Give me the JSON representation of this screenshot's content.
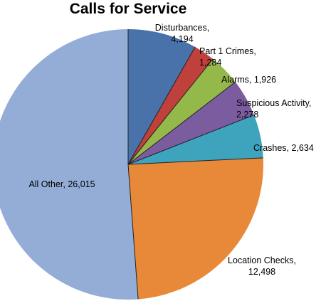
{
  "chart_data": {
    "type": "pie",
    "title": "Calls for Service",
    "slices": [
      {
        "label": "Disturbances",
        "value": 4194,
        "value_text": "4,194",
        "color": "#4A72AA"
      },
      {
        "label": "Part 1 Crimes",
        "value": 1284,
        "value_text": "1,284",
        "color": "#C0403C"
      },
      {
        "label": "Alarms",
        "value": 1926,
        "value_text": "1,926",
        "color": "#95B84B"
      },
      {
        "label": "Suspicious Activity",
        "value": 2278,
        "value_text": "2,278",
        "color": "#7B5C9E"
      },
      {
        "label": "Crashes",
        "value": 2634,
        "value_text": "2,634",
        "color": "#3EA3BD"
      },
      {
        "label": "Location Checks",
        "value": 12498,
        "value_text": "12,498",
        "color": "#E8893A"
      },
      {
        "label": "All Other",
        "value": 26015,
        "value_text": "26,015",
        "color": "#93ADD6"
      }
    ]
  }
}
